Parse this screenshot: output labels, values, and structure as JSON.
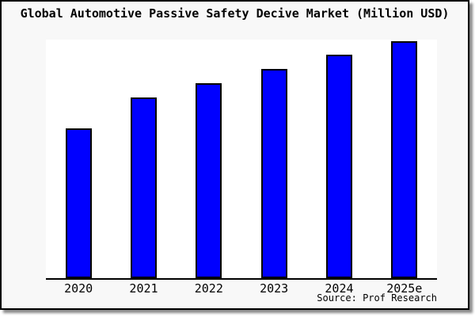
{
  "window": {
    "background_color": "#f8f8f8",
    "frame_border_color": "#000000",
    "shadow_color": "#8a8a8a",
    "plot_background_color": "#ffffff"
  },
  "chart_data": {
    "type": "bar",
    "title": "Global Automotive Passive Safety Decive Market (Million USD)",
    "categories": [
      "2020",
      "2021",
      "2022",
      "2023",
      "2024",
      "2025e"
    ],
    "values": [
      63,
      76,
      82,
      88,
      94,
      100
    ],
    "value_note": "no y-axis ticks or labels shown; values are relative bar heights with 2025e = 100",
    "xlabel": "",
    "ylabel": "",
    "ylim": [
      0,
      100.5
    ],
    "grid": false,
    "legend": null,
    "bar_color": "#0000ff",
    "bar_border_color": "#000000",
    "axis_line_color": "#000000",
    "source_label": "Source: Prof Research"
  }
}
